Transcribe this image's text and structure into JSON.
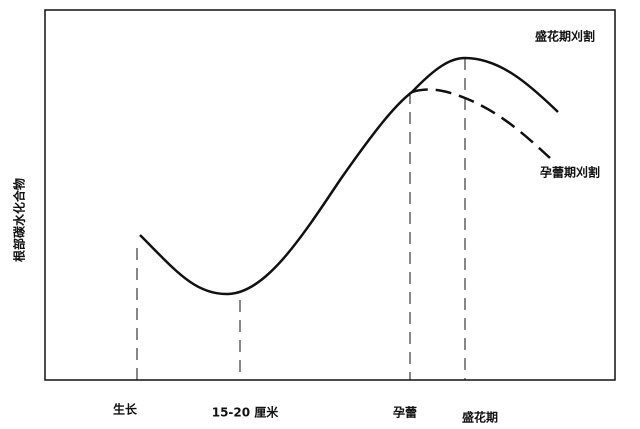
{
  "y_axis_label": "根部碳水化合物",
  "stages": [
    "生长",
    "15-20 厘米",
    "孕蕾",
    "盛花期"
  ],
  "curve_labels": [
    "盛花期刈割",
    "孕蕾期刈割"
  ]
}
